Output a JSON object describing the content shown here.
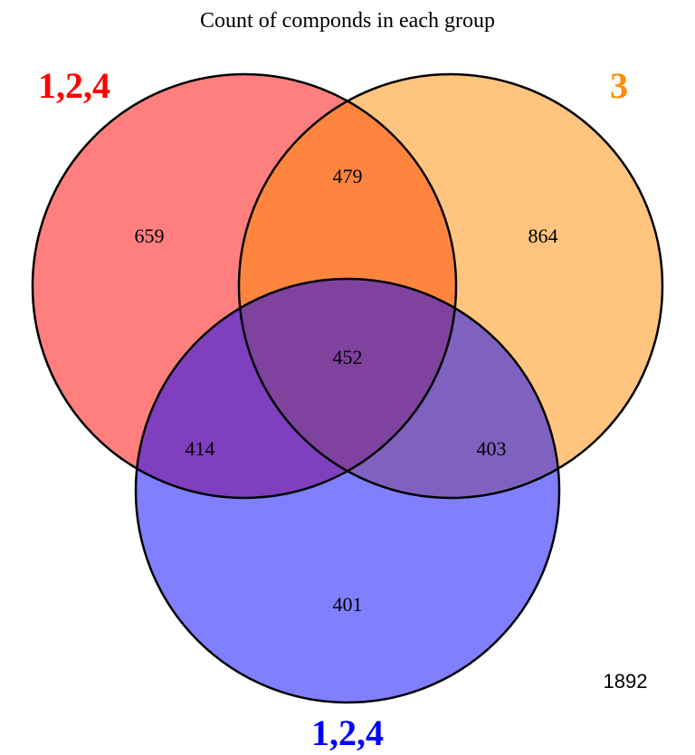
{
  "title": "Count of componds in each group",
  "sets": [
    {
      "id": "A",
      "label": "1,2,4",
      "label_color": "#ff0000",
      "fill": "#ff0000"
    },
    {
      "id": "B",
      "label": "3",
      "label_color": "#ff8c00",
      "fill": "#ff8c00"
    },
    {
      "id": "C",
      "label": "1,2,4",
      "label_color": "#0000ff",
      "fill": "#0000ff"
    }
  ],
  "regions": {
    "A_only": "659",
    "B_only": "864",
    "C_only": "401",
    "AB_only": "479",
    "AC_only": "414",
    "BC_only": "403",
    "ABC": "452"
  },
  "outside_count": "1892"
}
